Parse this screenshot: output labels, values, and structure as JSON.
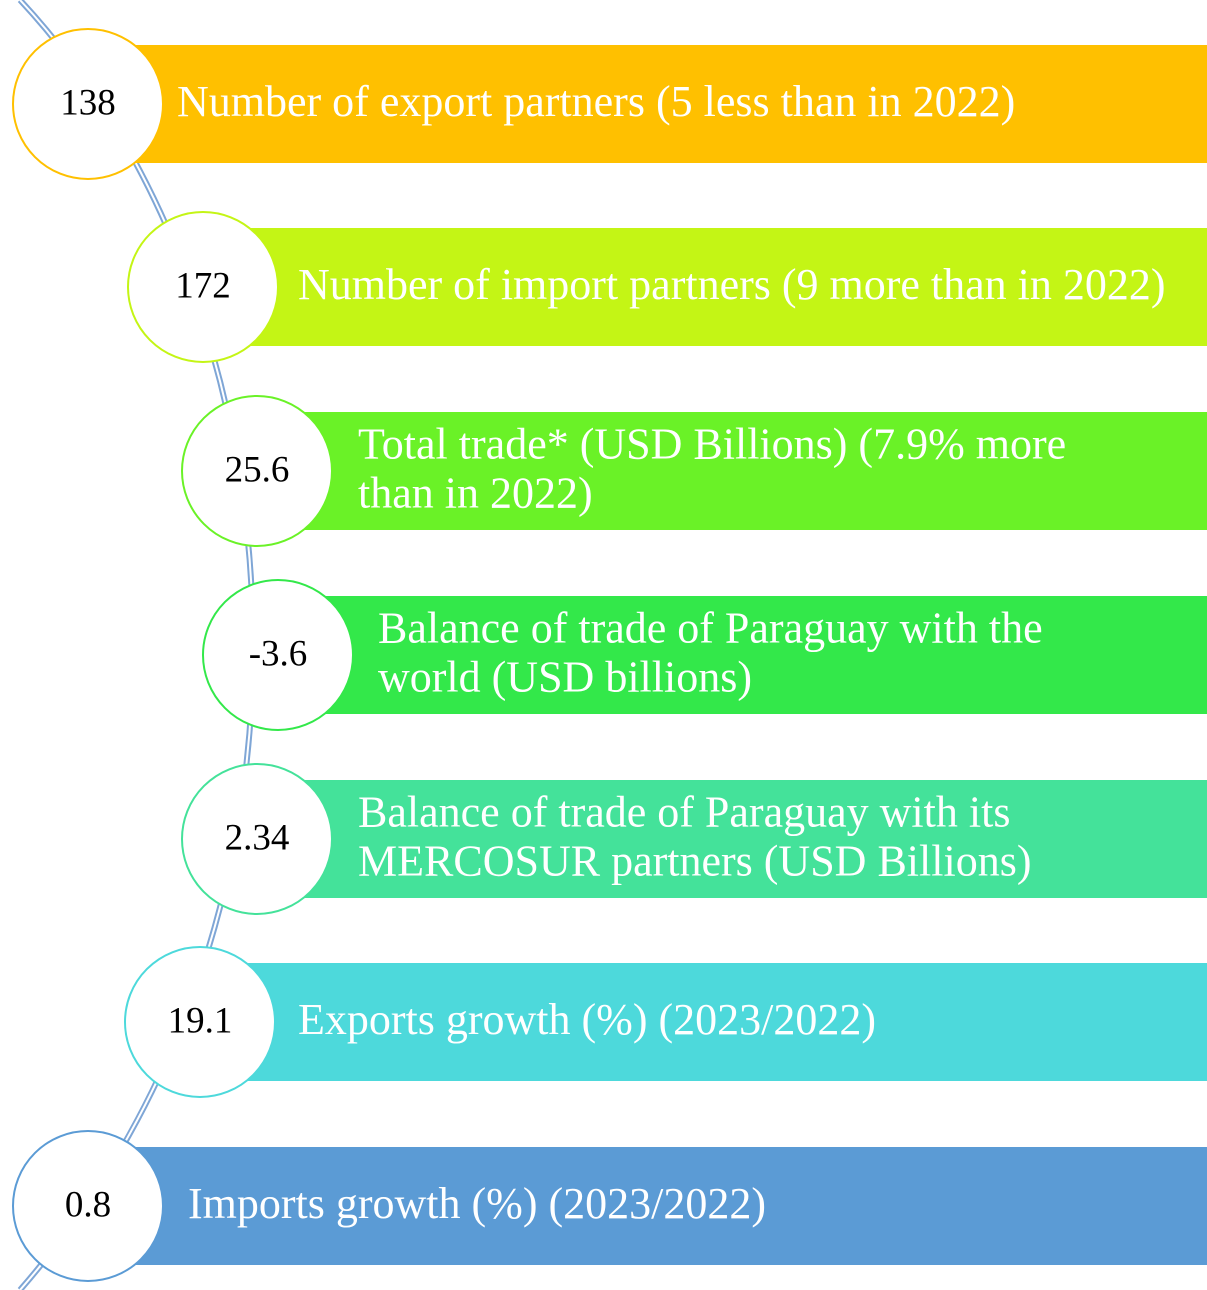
{
  "items": [
    {
      "value": "138",
      "label": [
        "Number of export partners (5 less than in 2022)"
      ],
      "color": "#ffc000"
    },
    {
      "value": "172",
      "label": [
        "Number of import partners (9 more than in 2022)"
      ],
      "color": "#c4f515"
    },
    {
      "value": "25.6",
      "label": [
        "Total trade* (USD Billions) (7.9% more",
        "than in 2022)"
      ],
      "color": "#6af227"
    },
    {
      "value": "-3.6",
      "label": [
        "Balance of trade of Paraguay with the",
        "world (USD billions)"
      ],
      "color": "#33e84a"
    },
    {
      "value": "2.34",
      "label": [
        "Balance of trade of Paraguay with its",
        "MERCOSUR partners (USD Billions)"
      ],
      "color": "#44e29a"
    },
    {
      "value": "19.1",
      "label": [
        "Exports growth (%) (2023/2022)"
      ],
      "color": "#4dd9db"
    },
    {
      "value": "0.8",
      "label": [
        "Imports growth (%) (2023/2022)"
      ],
      "color": "#5b9bd5"
    }
  ]
}
